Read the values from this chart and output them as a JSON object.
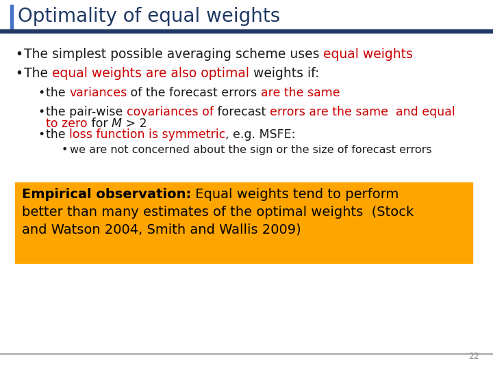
{
  "title": "Optimality of equal weights",
  "title_color": "#1F3864",
  "title_fontsize": 20,
  "slide_bg": "#FFFFFF",
  "header_bar_color": "#1F3864",
  "left_bar_color": "#4472C4",
  "page_number": "22",
  "orange_box_color": "#FFA500",
  "dark_text": "#1a1a1a",
  "red_text": "#CC0000",
  "bullet1_parts": [
    {
      "text": "The simplest possible averaging scheme uses ",
      "color": "#1a1a1a",
      "bold": false
    },
    {
      "text": "equal weights",
      "color": "#CC0000",
      "bold": false
    }
  ],
  "bullet2_parts": [
    {
      "text": "The ",
      "color": "#1a1a1a",
      "bold": false
    },
    {
      "text": "equal weights are also optimal",
      "color": "#CC0000",
      "bold": false
    },
    {
      "text": " weights if:",
      "color": "#1a1a1a",
      "bold": false
    }
  ],
  "sub_bullet1_parts": [
    {
      "text": "the ",
      "color": "#1a1a1a",
      "bold": false
    },
    {
      "text": "variances",
      "color": "#CC0000",
      "bold": false
    },
    {
      "text": " of the forecast errors ",
      "color": "#1a1a1a",
      "bold": false
    },
    {
      "text": "are the same",
      "color": "#CC0000",
      "bold": false
    }
  ],
  "sub_bullet2_line1_parts": [
    {
      "text": "the pair-wise ",
      "color": "#1a1a1a",
      "bold": false
    },
    {
      "text": "covariances of",
      "color": "#CC0000",
      "bold": false
    },
    {
      "text": " forecast ",
      "color": "#1a1a1a",
      "bold": false
    },
    {
      "text": "errors are the same  and equal",
      "color": "#CC0000",
      "bold": false
    }
  ],
  "sub_bullet2_line2_parts": [
    {
      "text": "to zero",
      "color": "#CC0000",
      "bold": false
    },
    {
      "text": " for ",
      "color": "#1a1a1a",
      "bold": false
    },
    {
      "text": "M",
      "color": "#1a1a1a",
      "bold": false,
      "italic": true
    },
    {
      "text": " > 2",
      "color": "#1a1a1a",
      "bold": false
    }
  ],
  "sub_bullet3_parts": [
    {
      "text": "the ",
      "color": "#1a1a1a",
      "bold": false
    },
    {
      "text": "loss function is symmetric",
      "color": "#CC0000",
      "bold": false
    },
    {
      "text": ", e.g. MSFE:",
      "color": "#1a1a1a",
      "bold": false
    }
  ],
  "sub_sub_bullet1": "we are not concerned about the sign or the size of forecast errors",
  "empirical_label": "Empirical observation:",
  "emp_line2": "better than many estimates of the optimal weights  (Stock",
  "emp_line3": "and Watson 2004, Smith and Wallis 2009)",
  "emp_line1_rest": " Equal weights tend to perform"
}
